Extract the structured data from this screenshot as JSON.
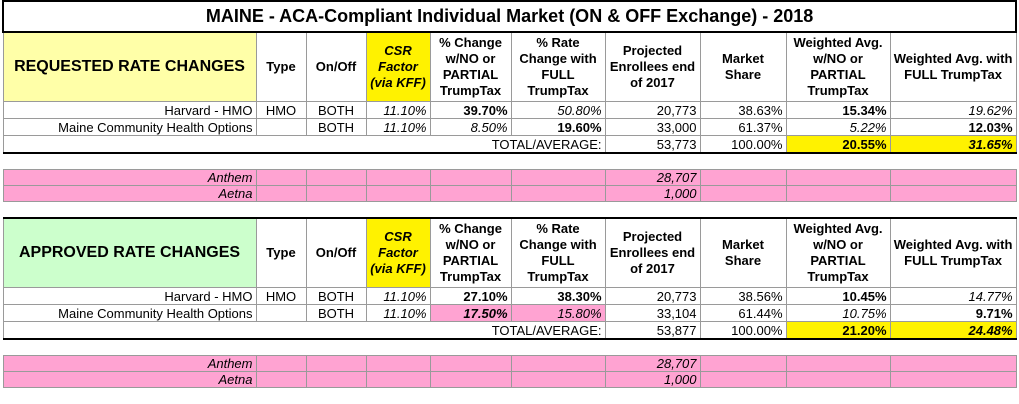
{
  "title": "MAINE - ACA-Compliant Individual Market (ON & OFF Exchange) - 2018",
  "sections": [
    {
      "label": "REQUESTED RATE CHANGES",
      "headers": [
        "Type",
        "On/Off",
        "CSR Factor (via KFF)",
        "% Change w/NO or PARTIAL TrumpTax",
        "% Rate Change with FULL TrumpTax",
        "Projected Enrollees end of 2017",
        "Market Share",
        "Weighted Avg. w/NO or PARTIAL TrumpTax",
        "Weighted Avg. with FULL TrumpTax"
      ],
      "rows": [
        [
          "Harvard - HMO",
          "HMO",
          "BOTH",
          "11.10%",
          "39.70%",
          "50.80%",
          "20,773",
          "38.63%",
          "15.34%",
          "19.62%"
        ],
        [
          "Maine Community Health Options",
          "",
          "BOTH",
          "11.10%",
          "8.50%",
          "19.60%",
          "33,000",
          "61.37%",
          "5.22%",
          "12.03%"
        ]
      ],
      "total": {
        "label": "TOTAL/AVERAGE:",
        "values": [
          "53,773",
          "100.00%",
          "20.55%",
          "31.65%"
        ]
      },
      "others": [
        [
          "Anthem",
          "28,707"
        ],
        [
          "Aetna",
          "1,000"
        ]
      ]
    },
    {
      "label": "APPROVED RATE CHANGES",
      "headers": [
        "Type",
        "On/Off",
        "CSR Factor (via KFF)",
        "% Change w/NO or PARTIAL TrumpTax",
        "% Rate Change with FULL TrumpTax",
        "Projected Enrollees end of 2017",
        "Market Share",
        "Weighted Avg. w/NO or PARTIAL TrumpTax",
        "Weighted Avg. with FULL TrumpTax"
      ],
      "rows": [
        [
          "Harvard - HMO",
          "HMO",
          "BOTH",
          "11.10%",
          "27.10%",
          "38.30%",
          "20,773",
          "38.56%",
          "10.45%",
          "14.77%"
        ],
        [
          "Maine Community Health Options",
          "",
          "BOTH",
          "11.10%",
          "17.50%",
          "15.80%",
          "33,104",
          "61.44%",
          "10.75%",
          "9.71%"
        ]
      ],
      "total": {
        "label": "TOTAL/AVERAGE:",
        "values": [
          "53,877",
          "100.00%",
          "21.20%",
          "24.48%"
        ]
      },
      "others": [
        [
          "Anthem",
          "28,707"
        ],
        [
          "Aetna",
          "1,000"
        ]
      ]
    }
  ]
}
